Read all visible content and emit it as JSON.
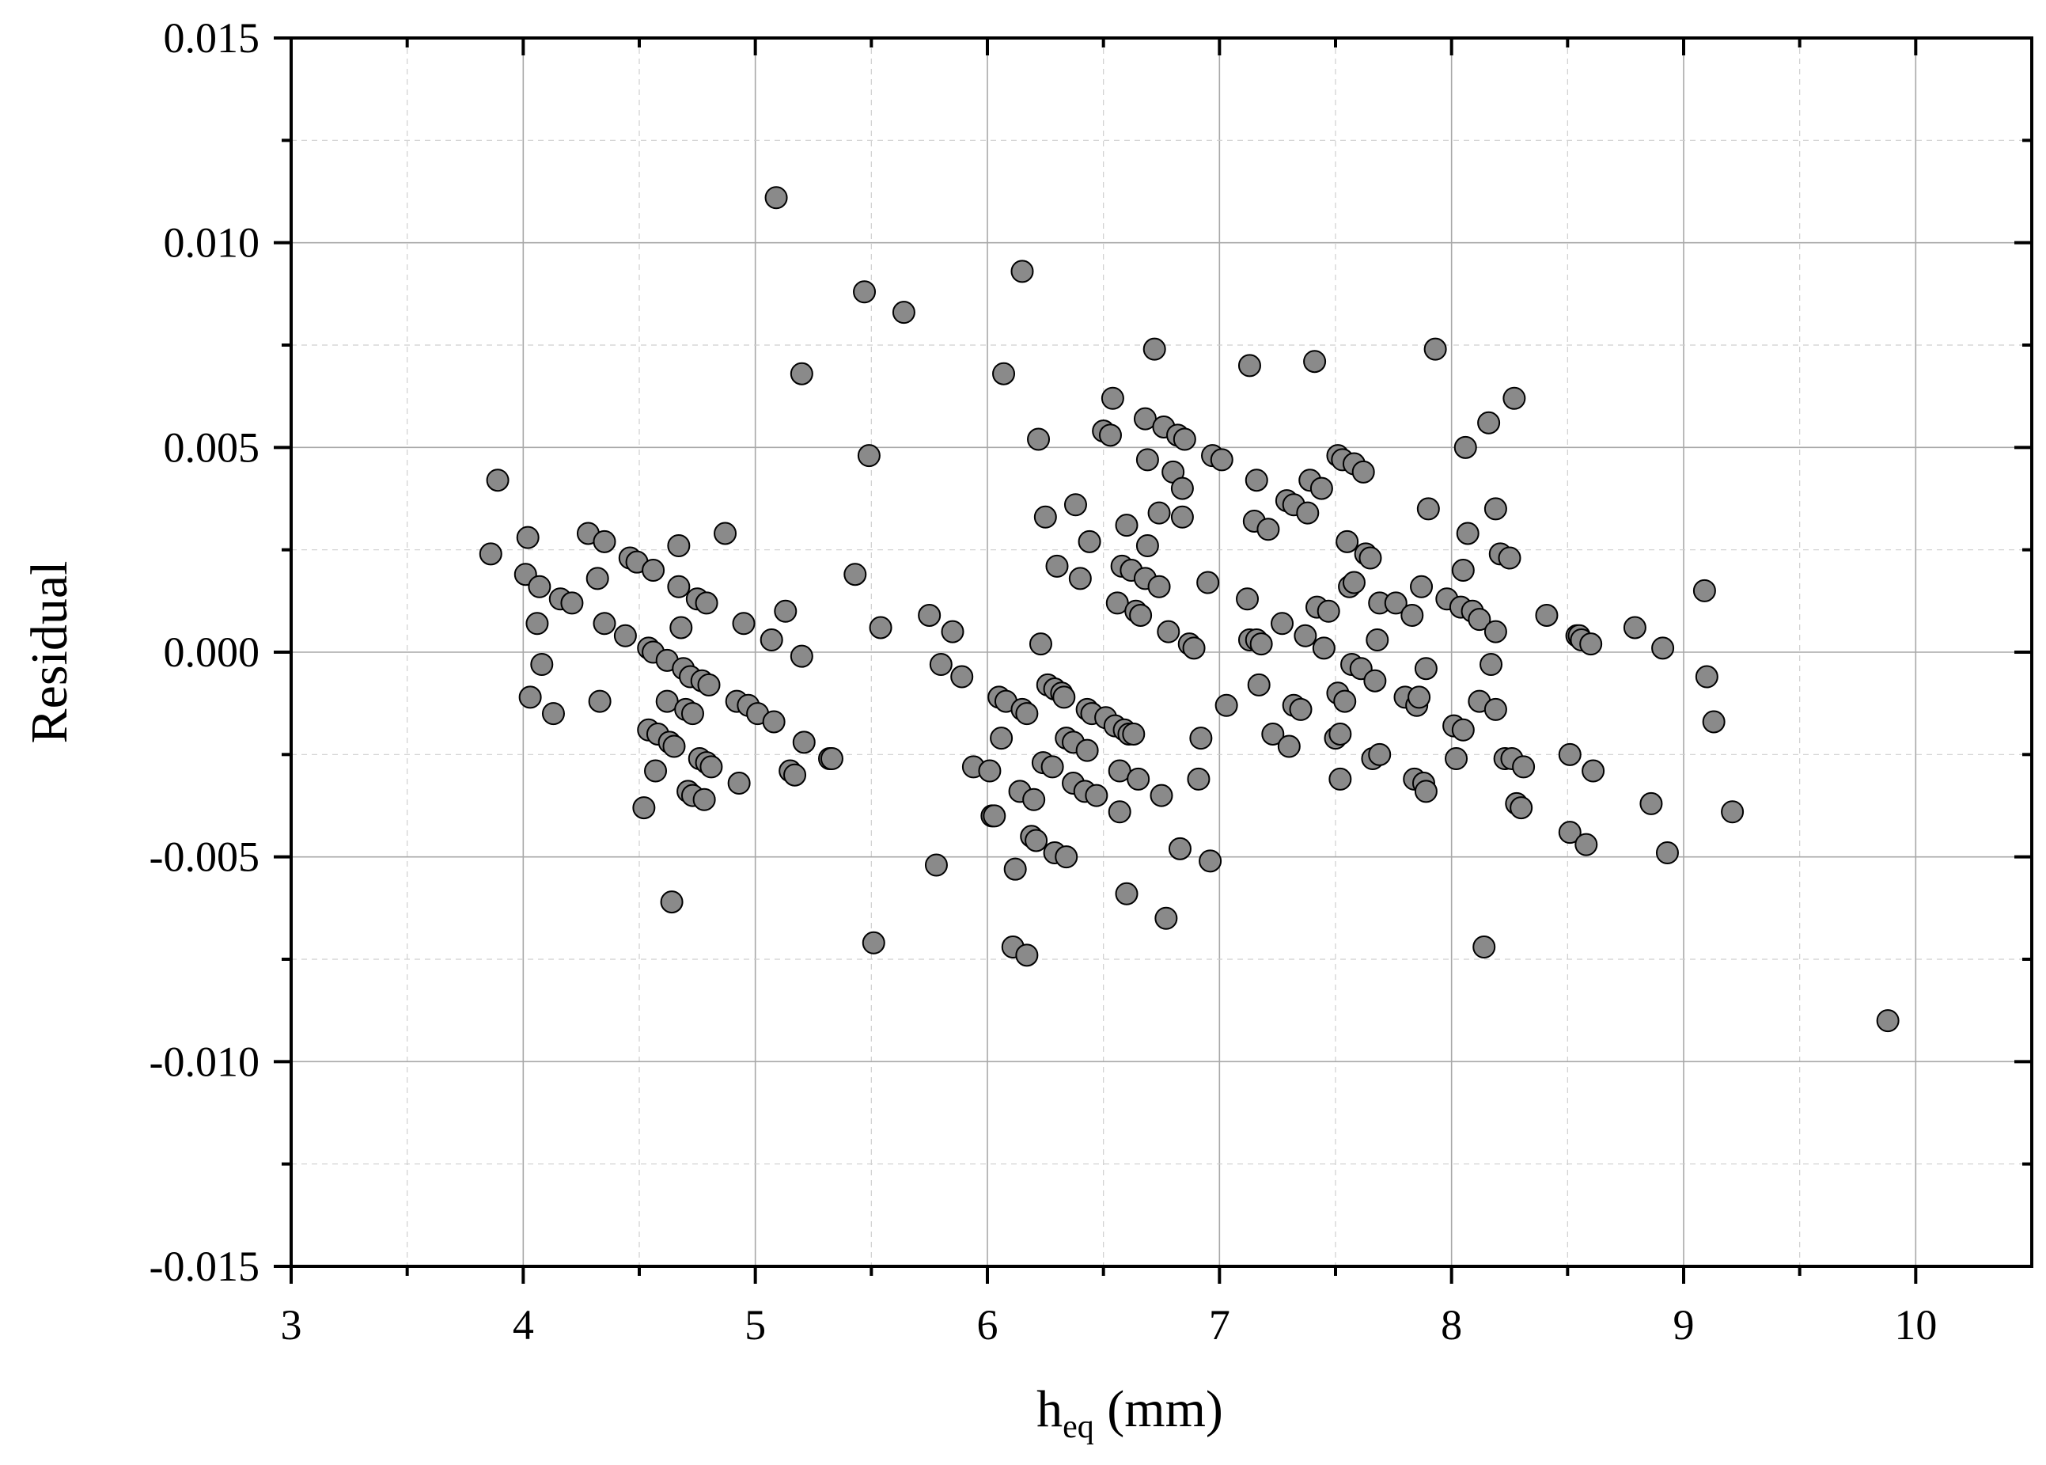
{
  "chart_data": {
    "type": "scatter",
    "title": "",
    "xlabel": {
      "base": "h",
      "subscript": "eq",
      "unit": " (mm)"
    },
    "ylabel": "Residual",
    "xlim": [
      3,
      10.5
    ],
    "ylim": [
      -0.015,
      0.015
    ],
    "xticks": [
      3,
      4,
      5,
      6,
      7,
      8,
      9,
      10
    ],
    "xtick_labels": [
      "3",
      "4",
      "5",
      "6",
      "7",
      "8",
      "9",
      "10"
    ],
    "yticks": [
      -0.015,
      -0.01,
      -0.005,
      0,
      0.005,
      0.01,
      0.015
    ],
    "ytick_labels": [
      "-0.015",
      "-0.010",
      "-0.005",
      "0.000",
      "0.005",
      "0.010",
      "0.015"
    ],
    "grid": true,
    "marker_color": "#8a8a8a",
    "series": [
      {
        "points": [
          [
            3.86,
            0.0024
          ],
          [
            3.89,
            0.0042
          ],
          [
            4.01,
            0.0019
          ],
          [
            4.02,
            0.0028
          ],
          [
            4.03,
            -0.0011
          ],
          [
            4.06,
            0.0007
          ],
          [
            4.07,
            0.0016
          ],
          [
            4.08,
            -0.0003
          ],
          [
            4.13,
            -0.0015
          ],
          [
            4.16,
            0.0013
          ],
          [
            4.21,
            0.0012
          ],
          [
            4.28,
            0.0029
          ],
          [
            4.32,
            0.0018
          ],
          [
            4.33,
            -0.0012
          ],
          [
            4.35,
            0.0027
          ],
          [
            4.35,
            0.0007
          ],
          [
            4.44,
            0.0004
          ],
          [
            4.46,
            0.0023
          ],
          [
            4.49,
            0.0022
          ],
          [
            4.52,
            -0.0038
          ],
          [
            4.54,
            0.0001
          ],
          [
            4.54,
            -0.0019
          ],
          [
            4.56,
            0.002
          ],
          [
            4.56,
            0.0
          ],
          [
            4.57,
            -0.0029
          ],
          [
            4.58,
            -0.002
          ],
          [
            4.62,
            -0.0002
          ],
          [
            4.62,
            -0.0012
          ],
          [
            4.63,
            -0.0022
          ],
          [
            4.64,
            -0.0061
          ],
          [
            4.65,
            -0.0023
          ],
          [
            4.67,
            0.0026
          ],
          [
            4.67,
            0.0016
          ],
          [
            4.68,
            0.0006
          ],
          [
            4.69,
            -0.0004
          ],
          [
            4.7,
            -0.0014
          ],
          [
            4.71,
            -0.0034
          ],
          [
            4.72,
            -0.0006
          ],
          [
            4.73,
            -0.0015
          ],
          [
            4.73,
            -0.0035
          ],
          [
            4.75,
            0.0013
          ],
          [
            4.76,
            -0.0026
          ],
          [
            4.77,
            -0.0007
          ],
          [
            4.78,
            -0.0036
          ],
          [
            4.79,
            0.0012
          ],
          [
            4.79,
            -0.0027
          ],
          [
            4.8,
            -0.0008
          ],
          [
            4.81,
            -0.0028
          ],
          [
            4.87,
            0.0029
          ],
          [
            4.92,
            -0.0012
          ],
          [
            4.93,
            -0.0032
          ],
          [
            4.95,
            0.0007
          ],
          [
            4.97,
            -0.0013
          ],
          [
            5.01,
            -0.0015
          ],
          [
            5.07,
            0.0003
          ],
          [
            5.08,
            -0.0017
          ],
          [
            5.09,
            0.0111
          ],
          [
            5.13,
            0.001
          ],
          [
            5.15,
            -0.0029
          ],
          [
            5.17,
            -0.003
          ],
          [
            5.2,
            0.0068
          ],
          [
            5.2,
            -0.0001
          ],
          [
            5.21,
            -0.0022
          ],
          [
            5.32,
            -0.0026
          ],
          [
            5.33,
            -0.0026
          ],
          [
            5.43,
            0.0019
          ],
          [
            5.47,
            0.0088
          ],
          [
            5.49,
            0.0048
          ],
          [
            5.51,
            -0.0071
          ],
          [
            5.54,
            0.0006
          ],
          [
            5.64,
            0.0083
          ],
          [
            5.75,
            0.0009
          ],
          [
            5.78,
            -0.0052
          ],
          [
            5.8,
            -0.0003
          ],
          [
            5.85,
            0.0005
          ],
          [
            5.89,
            -0.0006
          ],
          [
            5.94,
            -0.0028
          ],
          [
            6.01,
            -0.0029
          ],
          [
            6.02,
            -0.004
          ],
          [
            6.03,
            -0.004
          ],
          [
            6.05,
            -0.0011
          ],
          [
            6.06,
            -0.0021
          ],
          [
            6.07,
            0.0068
          ],
          [
            6.08,
            -0.0012
          ],
          [
            6.11,
            -0.0072
          ],
          [
            6.12,
            -0.0053
          ],
          [
            6.14,
            -0.0034
          ],
          [
            6.15,
            -0.0014
          ],
          [
            6.15,
            0.0093
          ],
          [
            6.17,
            -0.0015
          ],
          [
            6.17,
            -0.0074
          ],
          [
            6.19,
            -0.0045
          ],
          [
            6.2,
            -0.0036
          ],
          [
            6.21,
            -0.0046
          ],
          [
            6.22,
            0.0052
          ],
          [
            6.23,
            0.0002
          ],
          [
            6.24,
            -0.0027
          ],
          [
            6.25,
            0.0033
          ],
          [
            6.26,
            -0.0008
          ],
          [
            6.28,
            -0.0028
          ],
          [
            6.29,
            -0.0049
          ],
          [
            6.29,
            -0.0009
          ],
          [
            6.3,
            0.0021
          ],
          [
            6.32,
            -0.001
          ],
          [
            6.33,
            -0.0011
          ],
          [
            6.34,
            -0.0021
          ],
          [
            6.34,
            -0.005
          ],
          [
            6.37,
            -0.0032
          ],
          [
            6.37,
            -0.0022
          ],
          [
            6.38,
            0.0036
          ],
          [
            6.4,
            0.0018
          ],
          [
            6.42,
            -0.0034
          ],
          [
            6.43,
            -0.0014
          ],
          [
            6.43,
            -0.0024
          ],
          [
            6.44,
            0.0027
          ],
          [
            6.45,
            -0.0015
          ],
          [
            6.47,
            -0.0035
          ],
          [
            6.5,
            0.0054
          ],
          [
            6.51,
            -0.0016
          ],
          [
            6.53,
            0.0053
          ],
          [
            6.54,
            0.0062
          ],
          [
            6.55,
            -0.0018
          ],
          [
            6.56,
            0.0012
          ],
          [
            6.57,
            -0.0029
          ],
          [
            6.57,
            -0.0039
          ],
          [
            6.58,
            0.0021
          ],
          [
            6.59,
            -0.0019
          ],
          [
            6.6,
            0.0031
          ],
          [
            6.6,
            -0.0059
          ],
          [
            6.61,
            -0.002
          ],
          [
            6.62,
            0.002
          ],
          [
            6.63,
            -0.002
          ],
          [
            6.64,
            0.001
          ],
          [
            6.65,
            -0.0031
          ],
          [
            6.66,
            0.0009
          ],
          [
            6.68,
            0.0057
          ],
          [
            6.68,
            0.0018
          ],
          [
            6.69,
            0.0047
          ],
          [
            6.69,
            0.0026
          ],
          [
            6.72,
            0.0074
          ],
          [
            6.74,
            0.0034
          ],
          [
            6.74,
            0.0016
          ],
          [
            6.75,
            -0.0035
          ],
          [
            6.76,
            0.0055
          ],
          [
            6.77,
            -0.0065
          ],
          [
            6.78,
            0.0005
          ],
          [
            6.8,
            0.0044
          ],
          [
            6.82,
            0.0053
          ],
          [
            6.83,
            -0.0048
          ],
          [
            6.84,
            0.004
          ],
          [
            6.84,
            0.0033
          ],
          [
            6.85,
            0.0052
          ],
          [
            6.87,
            0.0002
          ],
          [
            6.89,
            0.0001
          ],
          [
            6.91,
            -0.0031
          ],
          [
            6.92,
            -0.0021
          ],
          [
            6.95,
            0.0017
          ],
          [
            6.96,
            -0.0051
          ],
          [
            6.97,
            0.0048
          ],
          [
            7.01,
            0.0047
          ],
          [
            7.03,
            -0.0013
          ],
          [
            7.12,
            0.0013
          ],
          [
            7.13,
            0.007
          ],
          [
            7.13,
            0.0003
          ],
          [
            7.15,
            0.0032
          ],
          [
            7.16,
            0.0003
          ],
          [
            7.16,
            0.0042
          ],
          [
            7.17,
            -0.0008
          ],
          [
            7.18,
            0.0002
          ],
          [
            7.21,
            0.003
          ],
          [
            7.23,
            -0.002
          ],
          [
            7.27,
            0.0007
          ],
          [
            7.29,
            0.0037
          ],
          [
            7.3,
            -0.0023
          ],
          [
            7.32,
            0.0036
          ],
          [
            7.32,
            -0.0013
          ],
          [
            7.35,
            -0.0014
          ],
          [
            7.37,
            0.0004
          ],
          [
            7.38,
            0.0034
          ],
          [
            7.39,
            0.0042
          ],
          [
            7.41,
            0.0071
          ],
          [
            7.42,
            0.0011
          ],
          [
            7.44,
            0.004
          ],
          [
            7.45,
            0.0001
          ],
          [
            7.47,
            0.001
          ],
          [
            7.5,
            -0.0021
          ],
          [
            7.51,
            -0.001
          ],
          [
            7.51,
            0.0048
          ],
          [
            7.52,
            -0.0031
          ],
          [
            7.52,
            -0.002
          ],
          [
            7.53,
            0.0047
          ],
          [
            7.54,
            -0.0012
          ],
          [
            7.55,
            0.0027
          ],
          [
            7.56,
            0.0016
          ],
          [
            7.57,
            -0.0003
          ],
          [
            7.58,
            0.0046
          ],
          [
            7.58,
            0.0017
          ],
          [
            7.61,
            -0.0004
          ],
          [
            7.62,
            0.0044
          ],
          [
            7.63,
            0.0024
          ],
          [
            7.65,
            0.0023
          ],
          [
            7.66,
            -0.0026
          ],
          [
            7.67,
            -0.0007
          ],
          [
            7.68,
            0.0003
          ],
          [
            7.69,
            0.0012
          ],
          [
            7.69,
            -0.0025
          ],
          [
            7.76,
            0.0012
          ],
          [
            7.8,
            -0.0011
          ],
          [
            7.83,
            0.0009
          ],
          [
            7.84,
            -0.0031
          ],
          [
            7.85,
            -0.0013
          ],
          [
            7.86,
            -0.0011
          ],
          [
            7.87,
            0.0016
          ],
          [
            7.88,
            -0.0032
          ],
          [
            7.89,
            -0.0034
          ],
          [
            7.89,
            -0.0004
          ],
          [
            7.9,
            0.0035
          ],
          [
            7.93,
            0.0074
          ],
          [
            7.98,
            0.0013
          ],
          [
            8.01,
            -0.0018
          ],
          [
            8.02,
            -0.0026
          ],
          [
            8.04,
            0.0011
          ],
          [
            8.05,
            0.002
          ],
          [
            8.05,
            -0.0019
          ],
          [
            8.06,
            0.005
          ],
          [
            8.07,
            0.0029
          ],
          [
            8.09,
            0.001
          ],
          [
            8.12,
            -0.0012
          ],
          [
            8.12,
            0.0008
          ],
          [
            8.14,
            -0.0072
          ],
          [
            8.16,
            0.0056
          ],
          [
            8.17,
            -0.0003
          ],
          [
            8.19,
            0.0035
          ],
          [
            8.19,
            0.0005
          ],
          [
            8.19,
            -0.0014
          ],
          [
            8.21,
            0.0024
          ],
          [
            8.23,
            -0.0026
          ],
          [
            8.25,
            0.0023
          ],
          [
            8.26,
            -0.0026
          ],
          [
            8.27,
            0.0062
          ],
          [
            8.28,
            -0.0037
          ],
          [
            8.3,
            -0.0038
          ],
          [
            8.31,
            -0.0028
          ],
          [
            8.41,
            0.0009
          ],
          [
            8.51,
            -0.0025
          ],
          [
            8.51,
            -0.0044
          ],
          [
            8.54,
            0.0004
          ],
          [
            8.55,
            0.0004
          ],
          [
            8.56,
            0.0003
          ],
          [
            8.58,
            -0.0047
          ],
          [
            8.6,
            0.0002
          ],
          [
            8.61,
            -0.0029
          ],
          [
            8.79,
            0.0006
          ],
          [
            8.86,
            -0.0037
          ],
          [
            8.91,
            0.0001
          ],
          [
            8.93,
            -0.0049
          ],
          [
            9.09,
            0.0015
          ],
          [
            9.1,
            -0.0006
          ],
          [
            9.13,
            -0.0017
          ],
          [
            9.21,
            -0.0039
          ],
          [
            9.88,
            -0.009
          ]
        ]
      }
    ]
  }
}
